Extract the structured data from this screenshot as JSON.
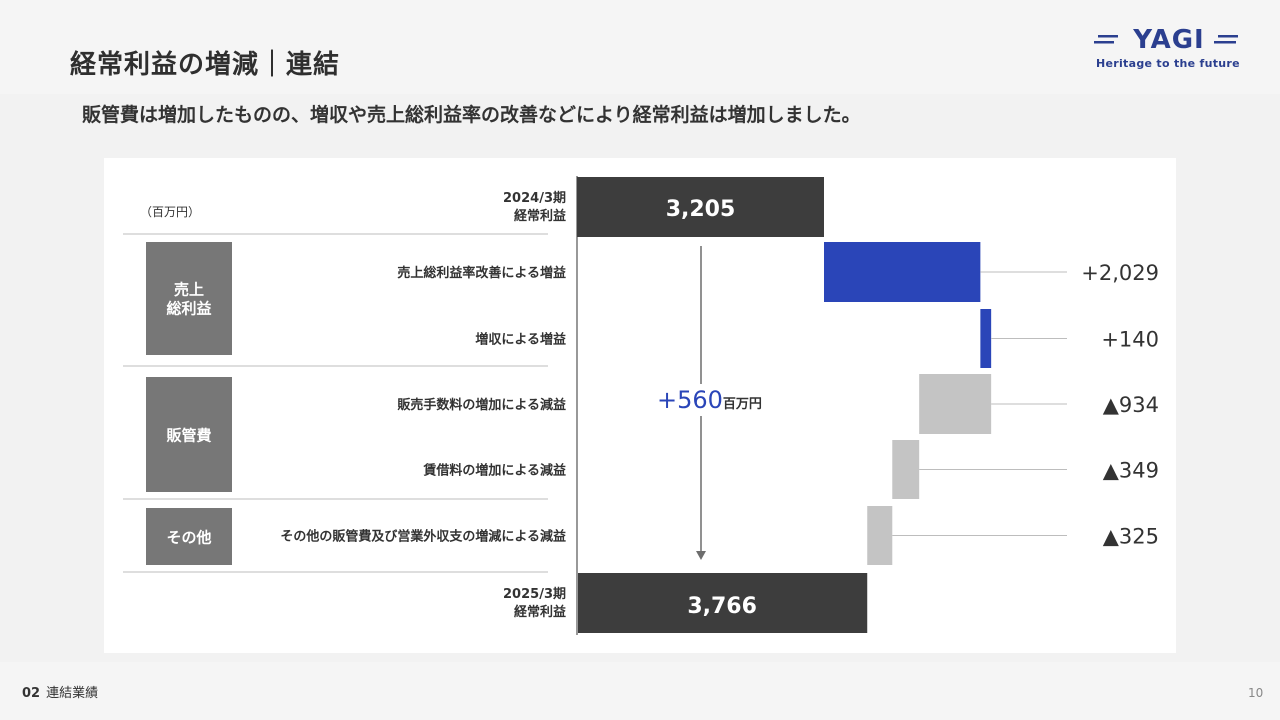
{
  "header": {
    "title": "経常利益の増減｜連結"
  },
  "logo": {
    "name": "YAGI",
    "tagline": "Heritage to the future"
  },
  "subtitle": "販管費は増加したものの、増収や売上総利益率の改善などにより経常利益は増加しました。",
  "footer": {
    "section_number": "02",
    "section_name": "連結業績",
    "page_number": "10"
  },
  "chart_data": {
    "type": "bar",
    "subtype": "waterfall",
    "orientation": "horizontal",
    "unit_label": "（百万円）",
    "start": {
      "label_line1": "2024/3期",
      "label_line2": "経常利益",
      "value": 3205,
      "value_label": "3,205",
      "color": "#3d3d3d"
    },
    "end": {
      "label_line1": "2025/3期",
      "label_line2": "経常利益",
      "value": 3766,
      "value_label": "3,766",
      "color": "#3d3d3d"
    },
    "steps": [
      {
        "label": "売上総利益率改善による増益",
        "value": 2029,
        "value_label": "+2,029",
        "color": "#2a45b8"
      },
      {
        "label": "増収による増益",
        "value": 140,
        "value_label": "+140",
        "color": "#2a45b8"
      },
      {
        "label": "販売手数料の増加による減益",
        "value": -934,
        "value_label": "▲934",
        "color": "#c4c4c4"
      },
      {
        "label": "賃借料の増加による減益",
        "value": -349,
        "value_label": "▲349",
        "color": "#c4c4c4"
      },
      {
        "label": "その他の販管費及び営業外収支の増減による減益",
        "value": -325,
        "value_label": "▲325",
        "color": "#c4c4c4"
      }
    ],
    "groups": [
      {
        "label_line1": "売上",
        "label_line2": "総利益",
        "steps": [
          0,
          1
        ]
      },
      {
        "label_line1": "販管費",
        "label_line2": "",
        "steps": [
          2,
          3
        ]
      },
      {
        "label_line1": "その他",
        "label_line2": "",
        "steps": [
          4
        ]
      }
    ],
    "total_change": {
      "value": 560,
      "value_label": "+560",
      "unit": "百万円",
      "color": "#2a45b8"
    }
  }
}
